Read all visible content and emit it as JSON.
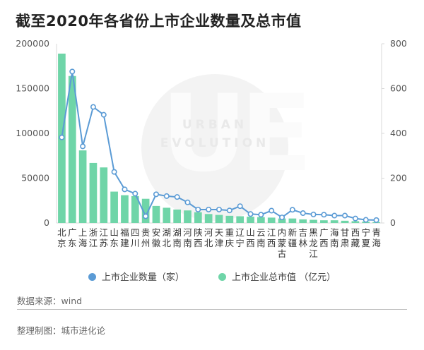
{
  "title": "截至2020年各省份上市企业数量及总市值",
  "source": "数据来源：wind",
  "credit": "整理制图：城市进化论",
  "watermark": {
    "big": "UE",
    "line1": "URBAN",
    "line2": "EVOLUTION"
  },
  "legend": {
    "count_label": "上市企业数量（家）",
    "value_label": "上市企业总市值 （亿元）"
  },
  "colors": {
    "bar": "#6fd5a8",
    "line": "#5b9bd5",
    "axis_text": "#555555",
    "grid": "#d9d9d9"
  },
  "chart_data": {
    "type": "bar+line",
    "categories": [
      "北京",
      "广东",
      "上海",
      "浙江",
      "江苏",
      "山东",
      "福建",
      "四川",
      "贵州",
      "安徽",
      "湖北",
      "湖南",
      "河南",
      "陕西",
      "河北",
      "天津",
      "重庆",
      "辽宁",
      "山西",
      "云南",
      "江西",
      "内蒙古",
      "新疆",
      "吉林",
      "黑龙江",
      "广西",
      "海南",
      "甘肃",
      "西藏",
      "宁夏",
      "青海"
    ],
    "left_axis": {
      "ylim": [
        0,
        200000
      ],
      "ticks": [
        "0",
        "50000",
        "100000",
        "150000",
        "200000"
      ]
    },
    "right_axis": {
      "ylim": [
        0,
        800
      ],
      "ticks": [
        "0",
        "200",
        "400",
        "600",
        "800"
      ]
    },
    "series": [
      {
        "name": "上市企业总市值 （亿元）",
        "kind": "bar",
        "axis": "left",
        "values": [
          189000,
          164000,
          81000,
          67000,
          62000,
          35000,
          31000,
          30000,
          27000,
          19000,
          17000,
          15000,
          14000,
          12000,
          10000,
          9000,
          8000,
          7500,
          7000,
          6500,
          6000,
          5000,
          5000,
          4000,
          3500,
          3000,
          3000,
          2500,
          2000,
          1500,
          1000
        ]
      },
      {
        "name": "上市企业数量（家）",
        "kind": "line",
        "axis": "right",
        "values": [
          382,
          676,
          342,
          518,
          483,
          228,
          150,
          131,
          30,
          128,
          120,
          116,
          92,
          60,
          60,
          60,
          56,
          75,
          40,
          37,
          55,
          25,
          59,
          44,
          38,
          37,
          33,
          33,
          20,
          14,
          13
        ]
      }
    ]
  }
}
